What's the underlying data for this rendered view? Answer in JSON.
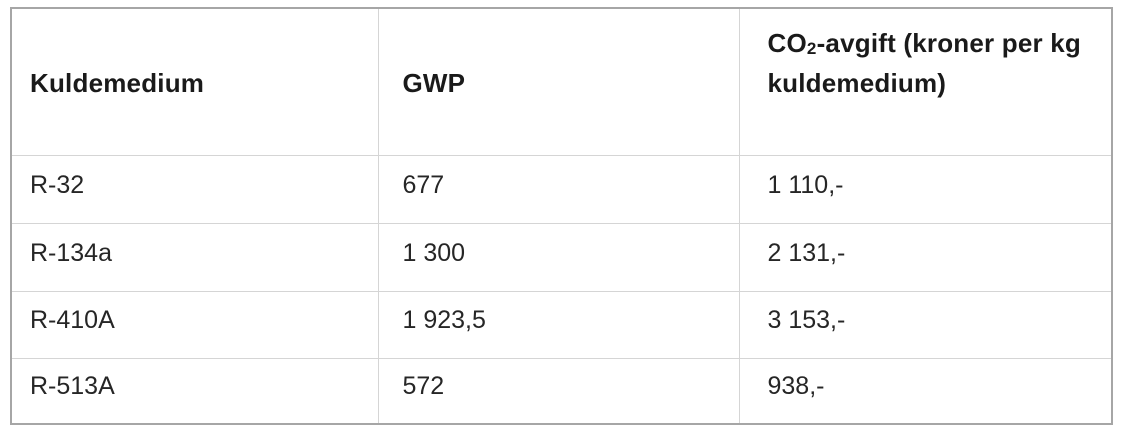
{
  "table": {
    "header": [
      {
        "label": "Kuldemedium"
      },
      {
        "label": "GWP"
      },
      {
        "prefix": "CO",
        "subscript": "2",
        "suffix": "-avgift (kroner per kg kuldemedium)"
      }
    ],
    "rows": [
      {
        "cells": [
          "R-32",
          "677",
          "1 110,-"
        ]
      },
      {
        "cells": [
          "R-134a",
          "1 300",
          "2 131,-"
        ]
      },
      {
        "cells": [
          "R-410A",
          "1 923,5",
          "3 153,-"
        ]
      },
      {
        "cells": [
          "R-513A",
          "572",
          "938,-"
        ]
      }
    ],
    "colors": {
      "outer_border": "#a6a6a6",
      "inner_border": "#d5d5d5",
      "header_text": "#1a1a1a",
      "body_text": "#262626",
      "background": "#ffffff"
    }
  }
}
